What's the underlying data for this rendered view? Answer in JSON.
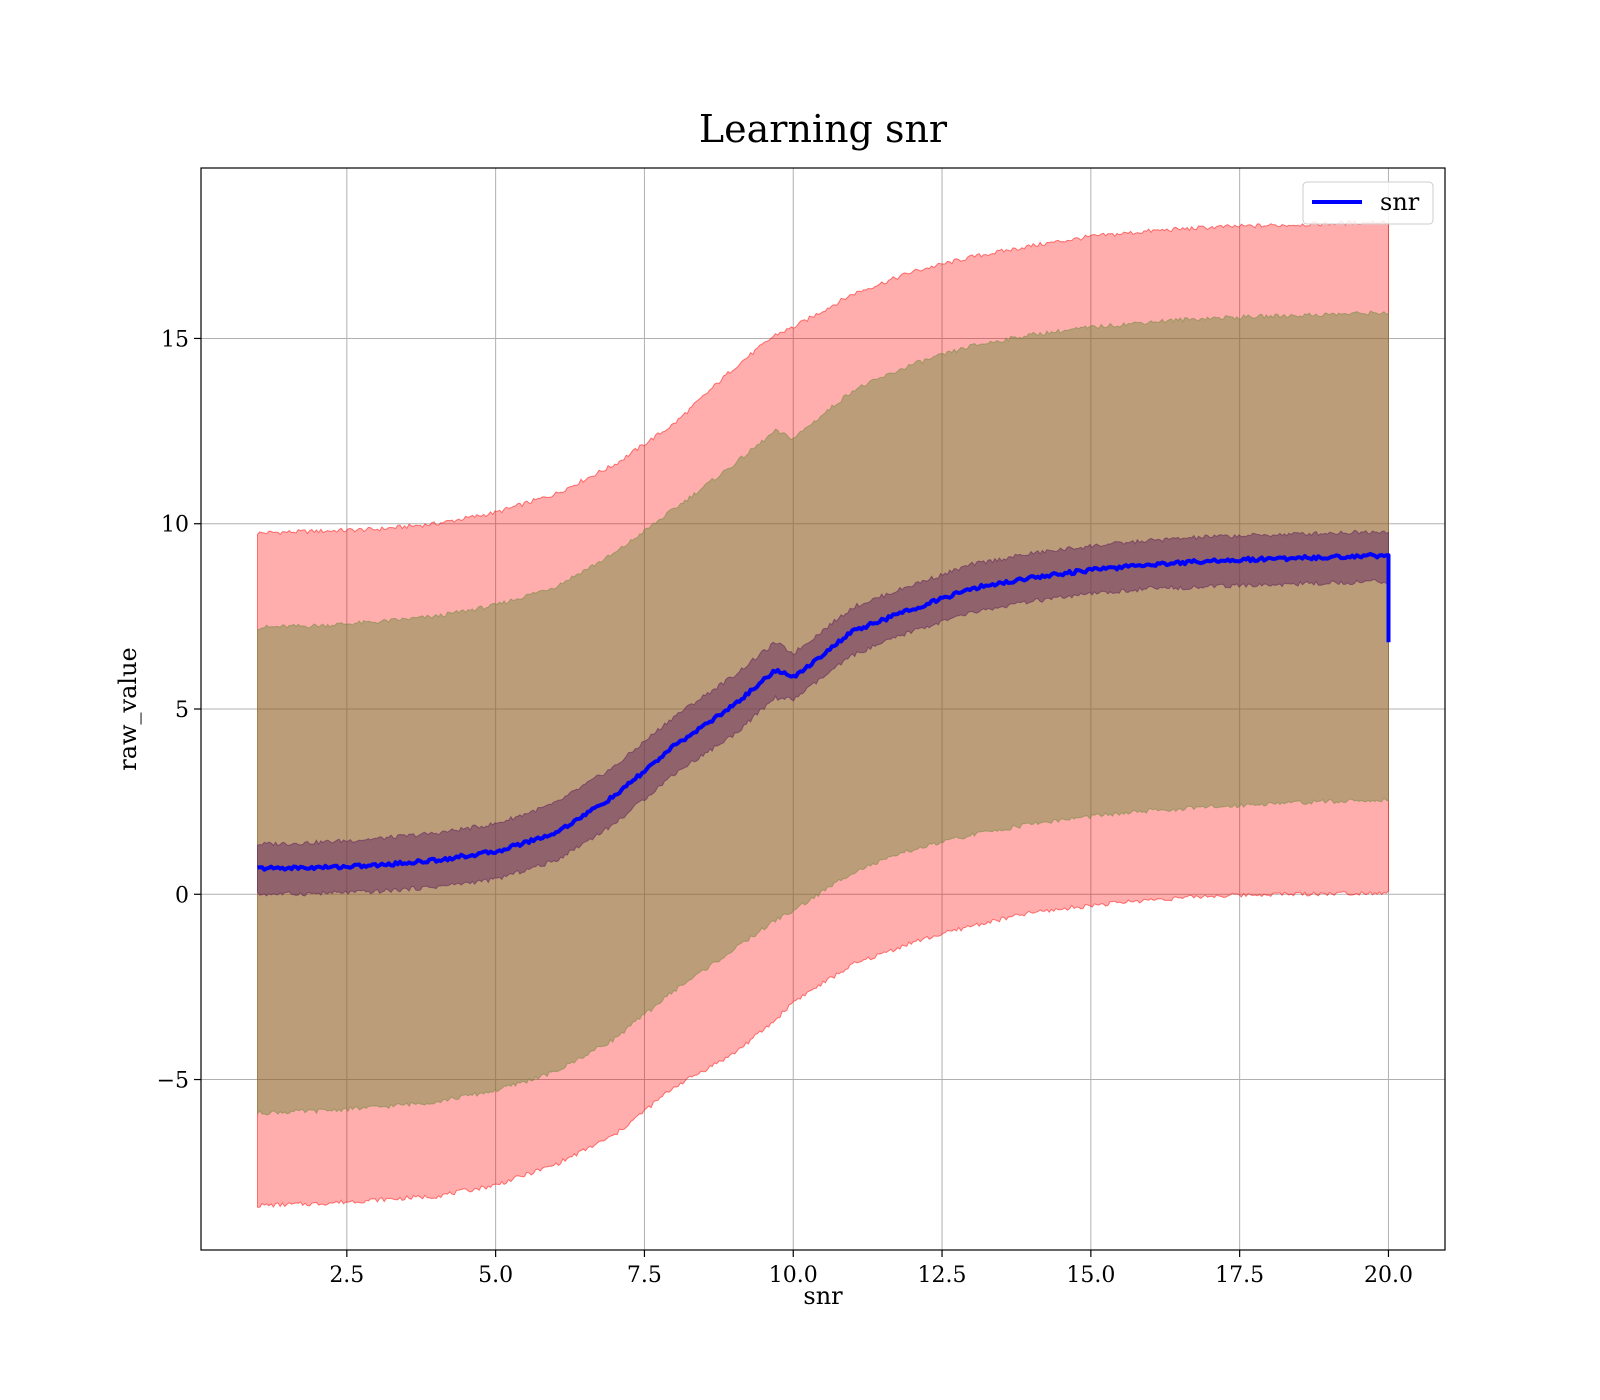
{
  "chart_data": {
    "type": "line",
    "title": "Learning snr",
    "xlabel": "snr",
    "ylabel": "raw_value",
    "xlim": [
      0.05,
      20.95
    ],
    "ylim": [
      -9.6,
      19.6
    ],
    "xticks": [
      2.5,
      5.0,
      7.5,
      10.0,
      12.5,
      15.0,
      17.5,
      20.0
    ],
    "xtick_labels": [
      "2.5",
      "5.0",
      "7.5",
      "10.0",
      "12.5",
      "15.0",
      "17.5",
      "20.0"
    ],
    "yticks": [
      -5,
      0,
      5,
      10,
      15
    ],
    "ytick_labels": [
      "−5",
      "0",
      "5",
      "10",
      "15"
    ],
    "grid": true,
    "legend": {
      "position": "top-right",
      "entries": [
        "snr"
      ]
    },
    "x": [
      1.0,
      2.0,
      3.0,
      4.0,
      5.0,
      6.0,
      7.0,
      8.0,
      9.0,
      9.7,
      10.0,
      11.0,
      12.0,
      13.0,
      14.0,
      15.0,
      16.0,
      17.0,
      18.0,
      19.0,
      20.0
    ],
    "series": [
      {
        "name": "snr",
        "color": "#0000ff",
        "values": [
          0.7,
          0.72,
          0.78,
          0.92,
          1.15,
          1.65,
          2.65,
          4.0,
          5.1,
          6.05,
          5.85,
          7.1,
          7.7,
          8.25,
          8.55,
          8.75,
          8.9,
          9.0,
          9.05,
          9.1,
          9.15
        ],
        "end_drop": 6.8
      }
    ],
    "bands": [
      {
        "color": "#ff0000",
        "opacity": 0.32,
        "upper": [
          9.75,
          9.8,
          9.85,
          10.0,
          10.3,
          10.8,
          11.6,
          12.7,
          14.2,
          15.1,
          15.3,
          16.2,
          16.8,
          17.2,
          17.5,
          17.75,
          17.9,
          18.0,
          18.05,
          18.1,
          18.15
        ],
        "lower": [
          -8.4,
          -8.35,
          -8.25,
          -8.15,
          -7.85,
          -7.3,
          -6.5,
          -5.2,
          -4.3,
          -3.4,
          -2.9,
          -1.9,
          -1.3,
          -0.85,
          -0.5,
          -0.3,
          -0.15,
          -0.05,
          0.0,
          0.02,
          0.05
        ]
      },
      {
        "color": "#6b8a3a",
        "opacity": 0.45,
        "upper": [
          7.2,
          7.25,
          7.35,
          7.5,
          7.8,
          8.3,
          9.2,
          10.4,
          11.6,
          12.5,
          12.3,
          13.6,
          14.3,
          14.8,
          15.1,
          15.3,
          15.45,
          15.55,
          15.6,
          15.65,
          15.7
        ],
        "lower": [
          -5.9,
          -5.85,
          -5.75,
          -5.6,
          -5.3,
          -4.8,
          -3.9,
          -2.6,
          -1.5,
          -0.7,
          -0.45,
          0.6,
          1.2,
          1.6,
          1.9,
          2.1,
          2.25,
          2.35,
          2.45,
          2.5,
          2.55
        ]
      },
      {
        "color": "#5a1a5a",
        "opacity": 0.45,
        "upper": [
          1.35,
          1.4,
          1.5,
          1.65,
          1.9,
          2.45,
          3.45,
          4.8,
          5.9,
          6.8,
          6.5,
          7.75,
          8.35,
          8.9,
          9.2,
          9.4,
          9.55,
          9.65,
          9.7,
          9.75,
          9.8
        ],
        "lower": [
          0.0,
          0.02,
          0.07,
          0.2,
          0.4,
          0.9,
          1.9,
          3.25,
          4.3,
          5.3,
          5.25,
          6.45,
          7.1,
          7.6,
          7.9,
          8.1,
          8.25,
          8.3,
          8.35,
          8.4,
          8.45
        ]
      }
    ]
  }
}
